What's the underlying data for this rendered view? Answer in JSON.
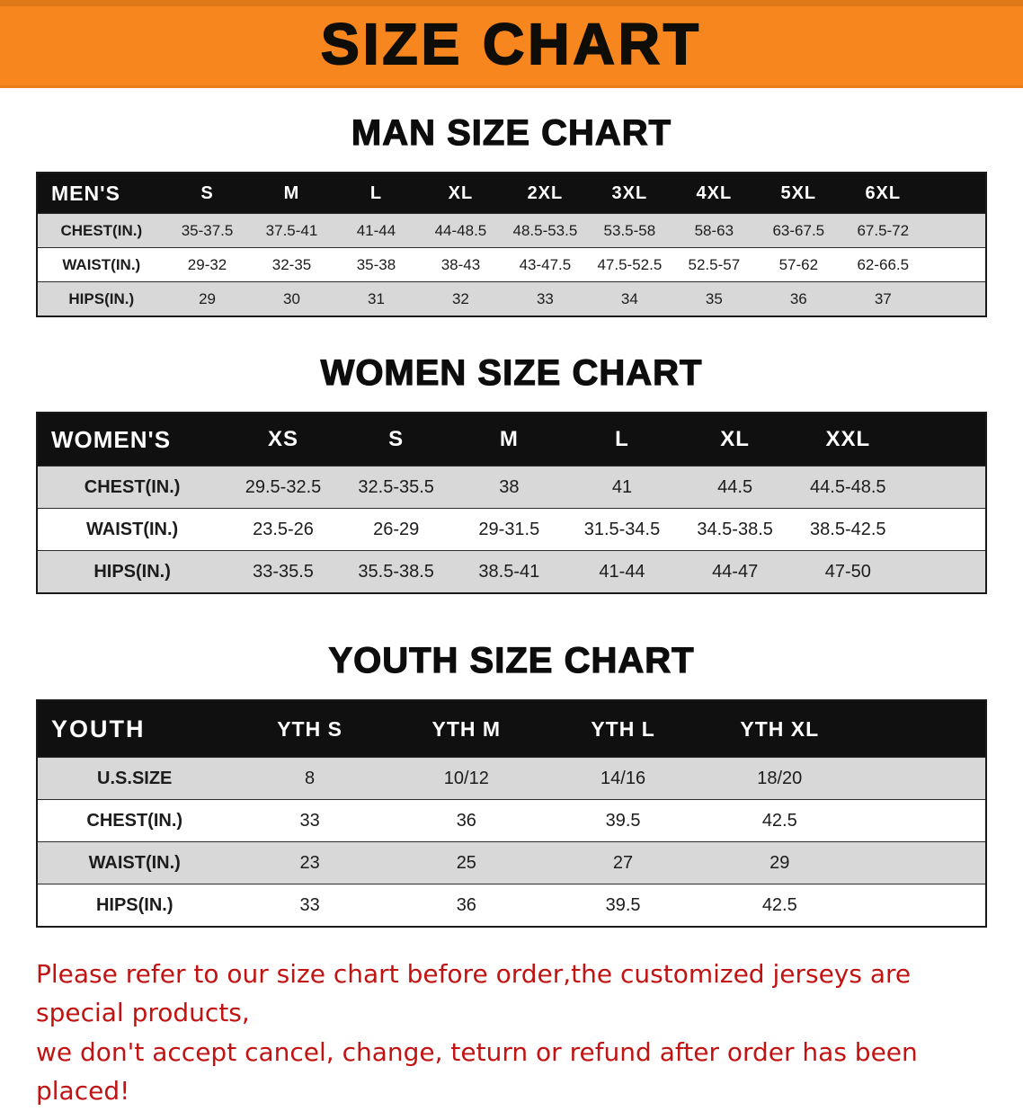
{
  "banner": {
    "title": "SIZE CHART"
  },
  "men": {
    "heading": "MAN SIZE CHART",
    "table": {
      "header": [
        "MEN'S",
        "S",
        "M",
        "L",
        "XL",
        "2XL",
        "3XL",
        "4XL",
        "5XL",
        "6XL"
      ],
      "rows": [
        [
          "CHEST(IN.)",
          "35-37.5",
          "37.5-41",
          "41-44",
          "44-48.5",
          "48.5-53.5",
          "53.5-58",
          "58-63",
          "63-67.5",
          "67.5-72"
        ],
        [
          "WAIST(IN.)",
          "29-32",
          "32-35",
          "35-38",
          "38-43",
          "43-47.5",
          "47.5-52.5",
          "52.5-57",
          "57-62",
          "62-66.5"
        ],
        [
          "HIPS(IN.)",
          "29",
          "30",
          "31",
          "32",
          "33",
          "34",
          "35",
          "36",
          "37"
        ]
      ]
    }
  },
  "women": {
    "heading": "WOMEN SIZE CHART",
    "table": {
      "header": [
        "WOMEN'S",
        "XS",
        "S",
        "M",
        "L",
        "XL",
        "XXL"
      ],
      "rows": [
        [
          "CHEST(IN.)",
          "29.5-32.5",
          "32.5-35.5",
          "38",
          "41",
          "44.5",
          "44.5-48.5"
        ],
        [
          "WAIST(IN.)",
          "23.5-26",
          "26-29",
          "29-31.5",
          "31.5-34.5",
          "34.5-38.5",
          "38.5-42.5"
        ],
        [
          "HIPS(IN.)",
          "33-35.5",
          "35.5-38.5",
          "38.5-41",
          "41-44",
          "44-47",
          "47-50"
        ]
      ]
    }
  },
  "youth": {
    "heading": "YOUTH SIZE CHART",
    "table": {
      "header": [
        "YOUTH",
        "YTH S",
        "YTH M",
        "YTH L",
        "YTH XL"
      ],
      "rows": [
        [
          "U.S.SIZE",
          "8",
          "10/12",
          "14/16",
          "18/20"
        ],
        [
          "CHEST(IN.)",
          "33",
          "36",
          "39.5",
          "42.5"
        ],
        [
          "WAIST(IN.)",
          "23",
          "25",
          "27",
          "29"
        ],
        [
          "HIPS(IN.)",
          "33",
          "36",
          "39.5",
          "42.5"
        ]
      ]
    }
  },
  "disclaimer": {
    "lines": [
      "Please refer to our size chart before order,the customized jerseys are special products,",
      "we don't accept cancel, change, teturn or refund after order has been placed!"
    ]
  },
  "colors": {
    "banner-bg": "#f6861d",
    "banner-title": "#0f0d08",
    "heading": "#0d0d0d",
    "table-header-bg": "#101010",
    "table-header-text": "#ffffff",
    "row-stripe": "#d8d8d8",
    "row-alt": "#ffffff",
    "cell-text": "#1c1c1c",
    "disclaimer": "#c21313"
  }
}
